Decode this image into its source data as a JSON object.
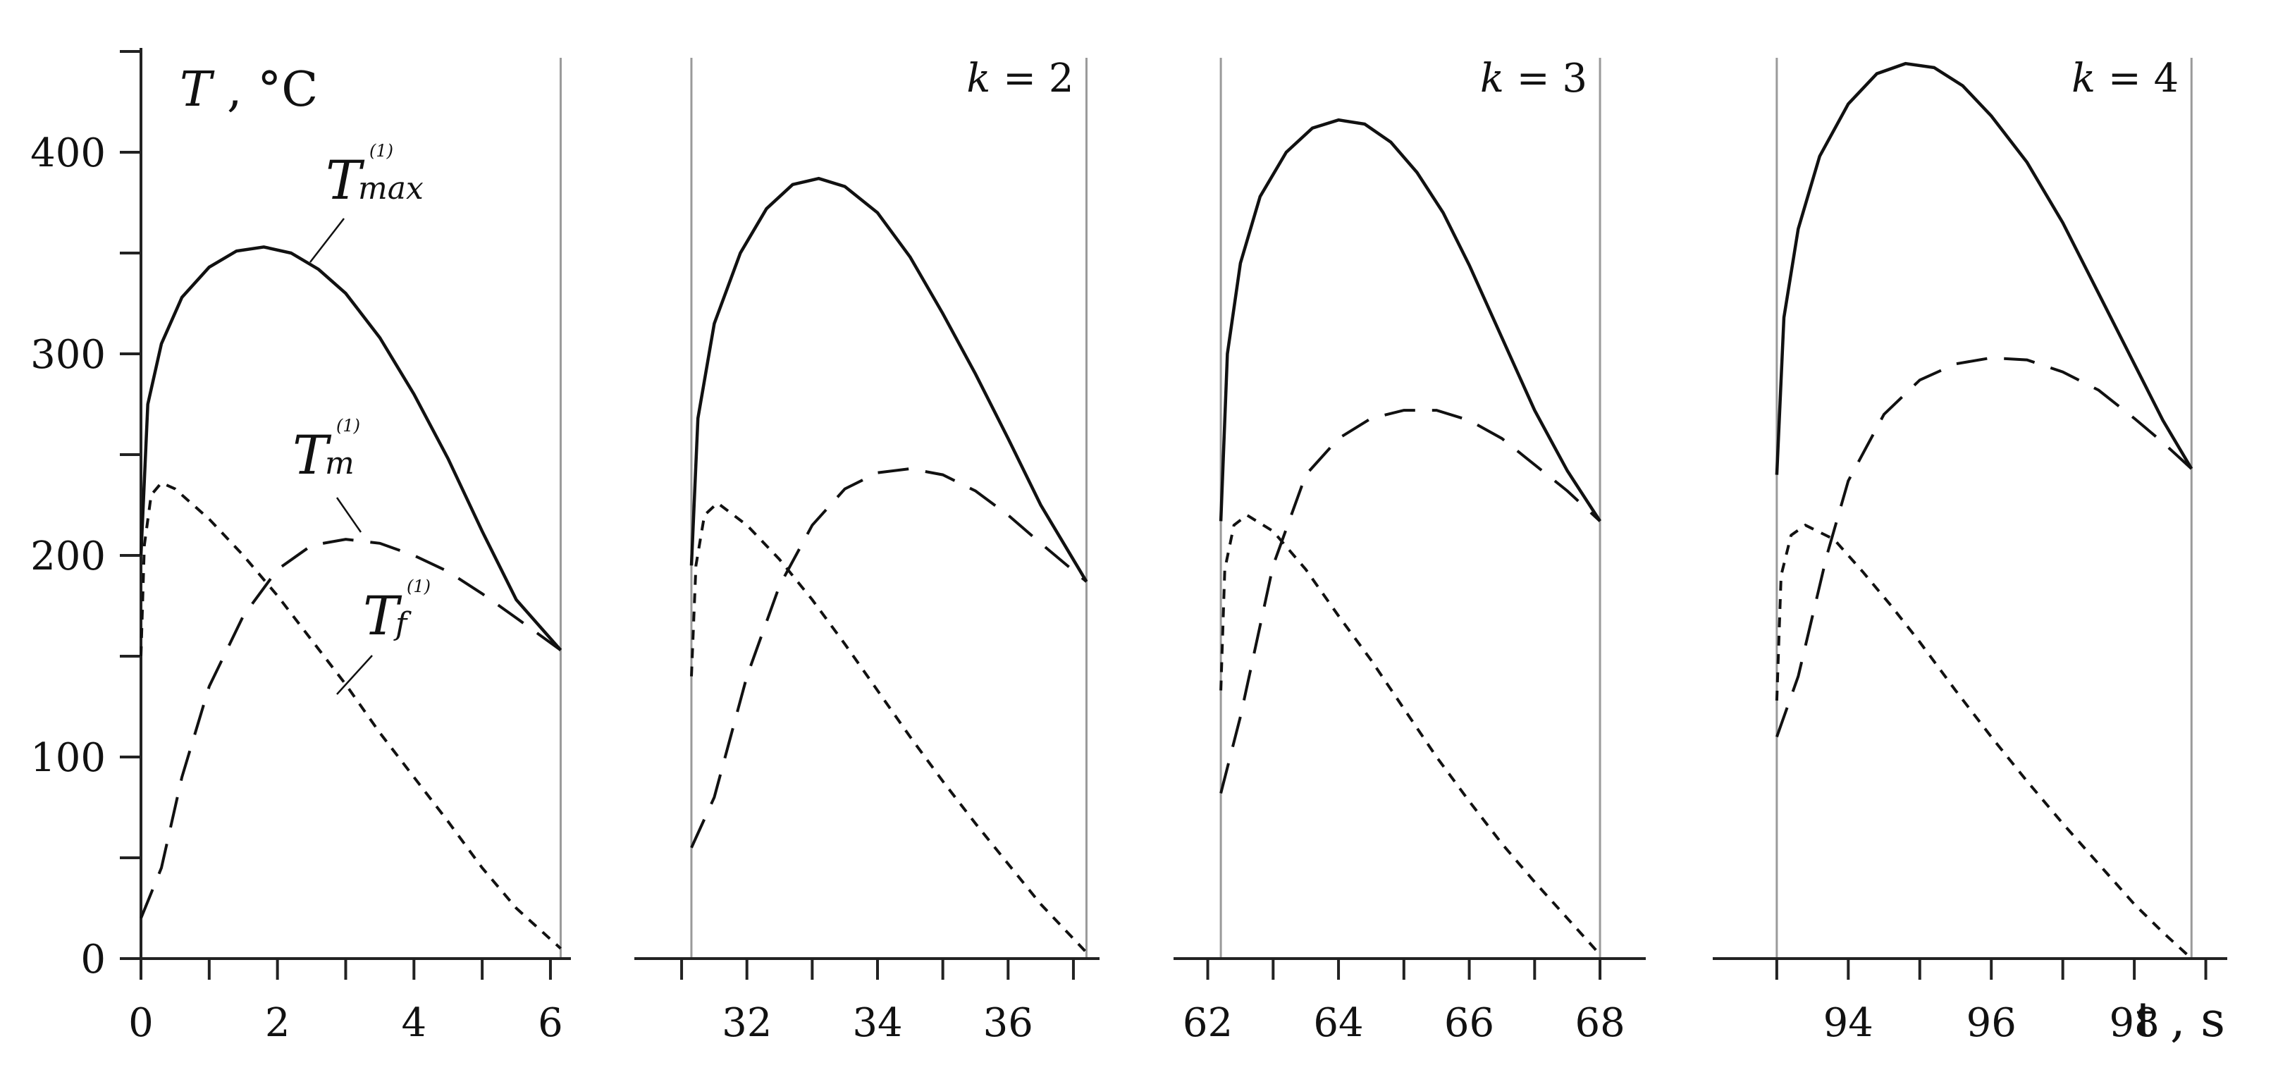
{
  "chart_data": [
    {
      "type": "line",
      "panel_label": "",
      "ylabel": "T , °C",
      "ylim": [
        0,
        450
      ],
      "yticks": [
        0,
        100,
        200,
        300,
        400
      ],
      "xlim": [
        0,
        6.3
      ],
      "xticks": [
        0,
        2,
        4,
        6
      ],
      "cycle_start": 0,
      "cycle_end": 6.15,
      "series": [
        {
          "key": "tmax",
          "name": "T_max^(1)",
          "style": "solid",
          "x": [
            0,
            0.1,
            0.3,
            0.6,
            1.0,
            1.4,
            1.8,
            2.2,
            2.6,
            3.0,
            3.5,
            4.0,
            4.5,
            5.0,
            5.5,
            6.15
          ],
          "y": [
            200,
            275,
            305,
            328,
            343,
            351,
            353,
            350,
            342,
            330,
            308,
            280,
            248,
            212,
            178,
            153
          ]
        },
        {
          "key": "tm",
          "name": "T_m^(1)",
          "style": "dashed",
          "x": [
            0,
            0.3,
            0.6,
            1.0,
            1.5,
            2.0,
            2.5,
            3.0,
            3.5,
            4.0,
            4.5,
            5.0,
            5.5,
            6.15
          ],
          "y": [
            20,
            45,
            90,
            135,
            170,
            193,
            205,
            208,
            206,
            200,
            192,
            181,
            169,
            153
          ]
        },
        {
          "key": "tf",
          "name": "T_f^(1)",
          "style": "dotted",
          "x": [
            0,
            0.05,
            0.15,
            0.3,
            0.5,
            1.0,
            1.5,
            2.0,
            2.5,
            3.0,
            3.5,
            4.0,
            4.5,
            5.0,
            5.5,
            6.15
          ],
          "y": [
            150,
            205,
            230,
            236,
            233,
            218,
            200,
            180,
            158,
            136,
            112,
            90,
            68,
            45,
            25,
            5
          ]
        }
      ],
      "annotations": [
        {
          "series": "tmax",
          "base": "T",
          "sub": "max",
          "sup": "(1)"
        },
        {
          "series": "tm",
          "base": "T",
          "sub": "m",
          "sup": "(1)"
        },
        {
          "series": "tf",
          "base": "T",
          "sub": "f",
          "sup": "(1)"
        }
      ]
    },
    {
      "type": "line",
      "panel_label": "k = 2",
      "xlim": [
        30.6,
        37.4
      ],
      "xticks": [
        32,
        34,
        36
      ],
      "cycle_start": 31.15,
      "cycle_end": 37.2,
      "series": [
        {
          "key": "tmax",
          "style": "solid",
          "x": [
            31.15,
            31.25,
            31.5,
            31.9,
            32.3,
            32.7,
            33.1,
            33.5,
            34.0,
            34.5,
            35.0,
            35.5,
            36.0,
            36.5,
            37.2
          ],
          "y": [
            195,
            268,
            315,
            350,
            372,
            384,
            387,
            383,
            370,
            348,
            320,
            290,
            258,
            225,
            187
          ]
        },
        {
          "key": "tm",
          "style": "dashed",
          "x": [
            31.15,
            31.5,
            32.0,
            32.5,
            33.0,
            33.5,
            34.0,
            34.5,
            35.0,
            35.5,
            36.0,
            36.5,
            37.2
          ],
          "y": [
            55,
            80,
            140,
            185,
            215,
            233,
            241,
            243,
            240,
            232,
            220,
            206,
            187
          ]
        },
        {
          "key": "tf",
          "style": "dotted",
          "x": [
            31.15,
            31.22,
            31.35,
            31.55,
            32.0,
            32.5,
            33.0,
            33.5,
            34.0,
            34.5,
            35.0,
            35.5,
            36.0,
            36.5,
            37.2
          ],
          "y": [
            140,
            195,
            220,
            226,
            215,
            198,
            178,
            156,
            133,
            110,
            88,
            67,
            47,
            27,
            3
          ]
        }
      ]
    },
    {
      "type": "line",
      "panel_label": "k = 3",
      "xlim": [
        61.8,
        68.7
      ],
      "xticks": [
        62,
        64,
        66,
        68
      ],
      "cycle_start": 62.2,
      "cycle_end": 68.0,
      "series": [
        {
          "key": "tmax",
          "style": "solid",
          "x": [
            62.2,
            62.3,
            62.5,
            62.8,
            63.2,
            63.6,
            64.0,
            64.4,
            64.8,
            65.2,
            65.6,
            66.0,
            66.5,
            67.0,
            67.5,
            68.0
          ],
          "y": [
            217,
            300,
            345,
            378,
            400,
            412,
            416,
            414,
            405,
            390,
            370,
            344,
            308,
            272,
            242,
            217
          ]
        },
        {
          "key": "tm",
          "style": "dashed",
          "x": [
            62.2,
            62.5,
            63.0,
            63.5,
            64.0,
            64.5,
            65.0,
            65.5,
            66.0,
            66.5,
            67.0,
            67.5,
            68.0
          ],
          "y": [
            82,
            120,
            195,
            240,
            258,
            268,
            272,
            272,
            267,
            258,
            245,
            232,
            217
          ]
        },
        {
          "key": "tf",
          "style": "dotted",
          "x": [
            62.2,
            62.26,
            62.4,
            62.6,
            63.0,
            63.5,
            64.0,
            64.5,
            65.0,
            65.5,
            66.0,
            66.5,
            67.0,
            67.5,
            68.0
          ],
          "y": [
            133,
            193,
            215,
            220,
            212,
            193,
            170,
            148,
            124,
            100,
            78,
            57,
            38,
            20,
            2
          ]
        }
      ]
    },
    {
      "type": "line",
      "panel_label": "k = 4",
      "xlim": [
        92.4,
        99.3
      ],
      "xticks": [
        94,
        96,
        98
      ],
      "cycle_start": 93.0,
      "cycle_end": 98.8,
      "series": [
        {
          "key": "tmax",
          "style": "solid",
          "x": [
            93.0,
            93.1,
            93.3,
            93.6,
            94.0,
            94.4,
            94.8,
            95.2,
            95.6,
            96.0,
            96.5,
            97.0,
            97.5,
            98.0,
            98.4,
            98.8
          ],
          "y": [
            240,
            318,
            362,
            398,
            424,
            439,
            444,
            442,
            433,
            418,
            395,
            365,
            330,
            295,
            267,
            243
          ]
        },
        {
          "key": "tm",
          "style": "dashed",
          "x": [
            93.0,
            93.3,
            93.7,
            94.0,
            94.5,
            95.0,
            95.5,
            96.0,
            96.5,
            97.0,
            97.5,
            98.0,
            98.4,
            98.8
          ],
          "y": [
            110,
            140,
            200,
            237,
            270,
            287,
            295,
            298,
            297,
            291,
            282,
            268,
            256,
            243
          ]
        },
        {
          "key": "tf",
          "style": "dotted",
          "x": [
            93.0,
            93.06,
            93.2,
            93.4,
            93.8,
            94.2,
            94.6,
            95.0,
            95.5,
            96.0,
            96.5,
            97.0,
            97.5,
            98.0,
            98.4,
            98.8
          ],
          "y": [
            128,
            190,
            210,
            215,
            208,
            192,
            175,
            157,
            133,
            110,
            88,
            67,
            47,
            27,
            13,
            0
          ]
        }
      ]
    }
  ],
  "x_axis_label": "t , s",
  "colors": {
    "curves": "#111111",
    "axes": "#222222",
    "cycle_lines": "#9a9a9a"
  }
}
